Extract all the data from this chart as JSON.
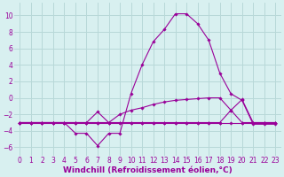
{
  "bg_color": "#d8f0f0",
  "grid_color": "#b8d8d8",
  "line_color": "#990099",
  "marker_color": "#990099",
  "xlabel": "Windchill (Refroidissement éolien,°C)",
  "xlabel_fontsize": 6.5,
  "tick_fontsize": 5.5,
  "xlim": [
    -0.5,
    23.5
  ],
  "ylim": [
    -7,
    11.5
  ],
  "yticks": [
    -6,
    -4,
    -2,
    0,
    2,
    4,
    6,
    8,
    10
  ],
  "xticks": [
    0,
    1,
    2,
    3,
    4,
    5,
    6,
    7,
    8,
    9,
    10,
    11,
    12,
    13,
    14,
    15,
    16,
    17,
    18,
    19,
    20,
    21,
    22,
    23
  ],
  "series": [
    {
      "x": [
        0,
        1,
        2,
        3,
        4,
        5,
        6,
        7,
        8,
        9,
        10,
        11,
        12,
        13,
        14,
        15,
        16,
        17,
        18,
        19,
        20,
        21,
        22,
        23
      ],
      "y": [
        -3,
        -3,
        -3,
        -3,
        -3,
        -4.3,
        -4.3,
        -5.8,
        -4.3,
        -4.3,
        0.5,
        4.0,
        6.8,
        8.3,
        10.2,
        10.2,
        9.0,
        7.0,
        3.0,
        0.5,
        -0.3,
        -3.2,
        -3.2,
        -3.2
      ]
    },
    {
      "x": [
        0,
        1,
        2,
        3,
        4,
        5,
        6,
        7,
        8,
        9,
        10,
        11,
        12,
        13,
        14,
        15,
        16,
        17,
        18,
        19,
        20,
        21,
        22,
        23
      ],
      "y": [
        -3,
        -3,
        -3,
        -3,
        -3,
        -3,
        -3,
        -3,
        -3,
        -2,
        -1.5,
        -1.2,
        -0.8,
        -0.5,
        -0.3,
        -0.2,
        -0.1,
        0.0,
        -0.0,
        -1.5,
        -3,
        -3,
        -3,
        -3
      ]
    },
    {
      "x": [
        0,
        1,
        2,
        3,
        4,
        5,
        6,
        7,
        8,
        9,
        10,
        11,
        12,
        13,
        14,
        15,
        16,
        17,
        18,
        19,
        20,
        21,
        22,
        23
      ],
      "y": [
        -3,
        -3,
        -3,
        -3,
        -3,
        -3,
        -3,
        -3,
        -3,
        -3,
        -3,
        -3,
        -3,
        -3,
        -3,
        -3,
        -3,
        -3,
        -3,
        -3,
        -3,
        -3,
        -3,
        -3
      ]
    },
    {
      "x": [
        0,
        1,
        2,
        3,
        4,
        5,
        6,
        7,
        8,
        9,
        10,
        11,
        12,
        13,
        14,
        15,
        16,
        17,
        18,
        19,
        20,
        21,
        22,
        23
      ],
      "y": [
        -3,
        -3,
        -3,
        -3,
        -3,
        -3,
        -3,
        -1.7,
        -3,
        -3,
        -3,
        -3,
        -3,
        -3,
        -3,
        -3,
        -3,
        -3,
        -3,
        -1.5,
        -0.2,
        -3,
        -3,
        -3
      ]
    }
  ]
}
